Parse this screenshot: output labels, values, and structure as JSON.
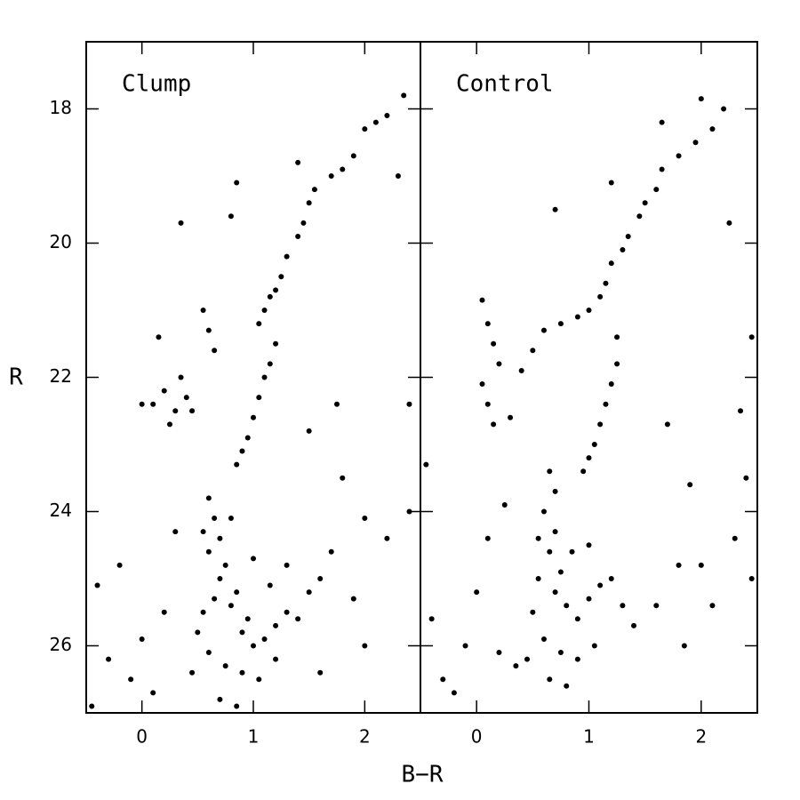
{
  "chart_data": [
    {
      "type": "scatter",
      "title": "Clump",
      "xlabel": "B−R",
      "ylabel": "R",
      "color": "#000000",
      "xlim": [
        -0.5,
        2.5
      ],
      "ylim": [
        17,
        27
      ],
      "y_inverted": true,
      "xticks": [
        0,
        1,
        2
      ],
      "yticks": [
        18,
        20,
        22,
        24,
        26
      ],
      "x": [
        2.35,
        2.2,
        2.1,
        2.0,
        1.9,
        1.8,
        1.7,
        1.55,
        1.5,
        1.45,
        1.4,
        1.3,
        1.25,
        1.2,
        1.15,
        1.1,
        1.05,
        1.2,
        1.15,
        1.1,
        1.05,
        1.0,
        0.95,
        0.9,
        0.85,
        1.4,
        2.3,
        0.85,
        0.35,
        0.8,
        0.35,
        0.4,
        0.3,
        0.25,
        0.45,
        0.2,
        0.1,
        0.0,
        0.55,
        0.6,
        0.65,
        0.15,
        0.6,
        0.65,
        0.7,
        0.6,
        0.75,
        0.7,
        0.85,
        0.8,
        0.95,
        0.9,
        1.0,
        1.1,
        1.2,
        1.3,
        1.4,
        0.65,
        0.55,
        0.5,
        0.6,
        0.75,
        0.9,
        1.05,
        1.2,
        0.45,
        0.7,
        0.85,
        0.55,
        0.8,
        1.0,
        1.15,
        1.5,
        1.6,
        1.7,
        1.3,
        -0.4,
        -0.3,
        -0.1,
        0.0,
        0.1,
        -0.2,
        0.2,
        -0.45,
        0.3,
        2.0,
        2.2,
        1.9,
        2.4,
        1.8,
        1.75,
        1.5,
        2.4,
        2.0,
        1.6
      ],
      "y": [
        17.8,
        18.1,
        18.2,
        18.3,
        18.7,
        18.9,
        19.0,
        19.2,
        19.4,
        19.7,
        19.9,
        20.2,
        20.5,
        20.7,
        20.8,
        21.0,
        21.2,
        21.5,
        21.8,
        22.0,
        22.3,
        22.6,
        22.9,
        23.1,
        23.3,
        18.8,
        19.0,
        19.1,
        19.7,
        19.6,
        22.0,
        22.3,
        22.5,
        22.7,
        22.5,
        22.2,
        22.4,
        22.4,
        21.0,
        21.3,
        21.6,
        21.4,
        23.8,
        24.1,
        24.4,
        24.6,
        24.8,
        25.0,
        25.2,
        25.4,
        25.6,
        25.8,
        26.0,
        25.9,
        25.7,
        25.5,
        25.6,
        25.3,
        25.5,
        25.8,
        26.1,
        26.3,
        26.4,
        26.5,
        26.2,
        26.4,
        26.8,
        26.9,
        24.3,
        24.1,
        24.7,
        25.1,
        25.2,
        25.0,
        24.6,
        24.8,
        25.1,
        26.2,
        26.5,
        25.9,
        26.7,
        24.8,
        25.5,
        26.9,
        24.3,
        24.1,
        24.4,
        25.3,
        24.0,
        23.5,
        22.4,
        22.8,
        22.4,
        26.0,
        26.4
      ]
    },
    {
      "type": "scatter",
      "title": "Control",
      "color": "#000000",
      "sharey": true,
      "xlim": [
        -0.5,
        2.5
      ],
      "ylim": [
        17,
        27
      ],
      "y_inverted": true,
      "xticks": [
        0,
        1,
        2
      ],
      "x": [
        2.0,
        2.2,
        2.1,
        1.95,
        1.8,
        1.65,
        1.6,
        1.5,
        1.45,
        1.35,
        1.3,
        1.2,
        1.15,
        1.1,
        1.0,
        0.9,
        1.25,
        1.25,
        1.2,
        1.15,
        1.1,
        1.05,
        1.0,
        0.95,
        1.65,
        0.7,
        2.25,
        1.2,
        0.05,
        0.1,
        0.15,
        0.2,
        0.05,
        0.1,
        0.15,
        0.3,
        0.5,
        0.6,
        0.75,
        0.4,
        0.65,
        0.7,
        0.6,
        0.7,
        0.65,
        0.75,
        0.7,
        0.8,
        0.9,
        1.0,
        1.1,
        1.2,
        1.3,
        0.55,
        0.5,
        0.6,
        0.75,
        0.9,
        1.05,
        0.45,
        0.65,
        0.8,
        0.35,
        0.2,
        0.85,
        1.0,
        0.55,
        1.4,
        -0.4,
        -0.3,
        -0.1,
        0.0,
        -0.2,
        0.1,
        -0.45,
        0.25,
        1.6,
        1.8,
        2.0,
        2.1,
        2.3,
        2.4,
        2.35,
        1.7,
        1.9,
        2.45,
        1.85,
        2.45
      ],
      "y": [
        17.85,
        18.0,
        18.3,
        18.5,
        18.7,
        18.9,
        19.2,
        19.4,
        19.6,
        19.9,
        20.1,
        20.3,
        20.6,
        20.8,
        21.0,
        21.1,
        21.4,
        21.8,
        22.1,
        22.4,
        22.7,
        23.0,
        23.2,
        23.4,
        18.2,
        19.5,
        19.7,
        19.1,
        20.85,
        21.2,
        21.5,
        21.8,
        22.1,
        22.4,
        22.7,
        22.6,
        21.6,
        21.3,
        21.2,
        21.9,
        23.4,
        23.7,
        24.0,
        24.3,
        24.6,
        24.9,
        25.2,
        25.4,
        25.6,
        25.3,
        25.1,
        25.0,
        25.4,
        25.0,
        25.5,
        25.9,
        26.1,
        26.2,
        26.0,
        26.2,
        26.5,
        26.6,
        26.3,
        26.1,
        24.6,
        24.5,
        24.4,
        25.7,
        25.6,
        26.5,
        26.0,
        25.2,
        26.7,
        24.4,
        23.3,
        23.9,
        25.4,
        24.8,
        24.8,
        25.4,
        24.4,
        23.5,
        22.5,
        22.7,
        23.6,
        21.4,
        26.0,
        25.0
      ]
    }
  ]
}
